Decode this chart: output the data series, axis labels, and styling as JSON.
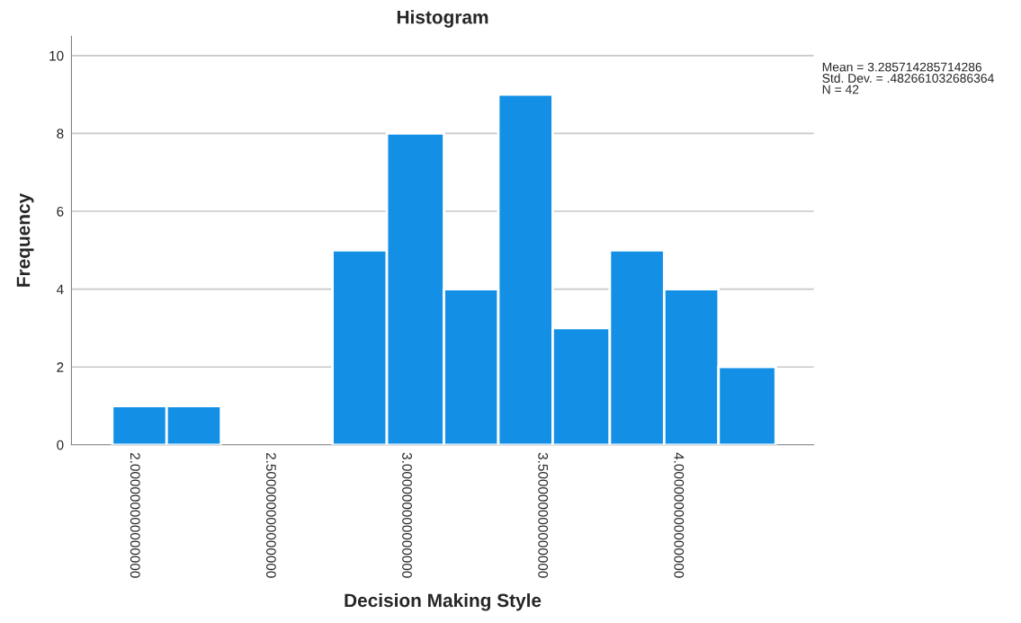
{
  "chart_data": {
    "type": "histogram",
    "title": "Histogram",
    "xlabel": "Decision Making Style",
    "ylabel": "Frequency",
    "bins": [
      1.92,
      2.12,
      2.32,
      2.73,
      2.93,
      3.14,
      3.34,
      3.54,
      3.75,
      3.95,
      4.15,
      4.36
    ],
    "values": [
      1,
      1,
      0,
      5,
      8,
      4,
      9,
      3,
      5,
      4,
      2
    ],
    "color": "#1390e6",
    "xlim": [
      1.77,
      4.5
    ],
    "xticks": [
      {
        "value": 2,
        "label": "2.000000000000000"
      },
      {
        "value": 2.5,
        "label": "2.500000000000000"
      },
      {
        "value": 3,
        "label": "3.000000000000000"
      },
      {
        "value": 3.5,
        "label": "3.500000000000000"
      },
      {
        "value": 4,
        "label": "4.000000000000000"
      }
    ],
    "ylim": [
      0,
      10.5
    ],
    "yticks": [
      0,
      2,
      4,
      6,
      8,
      10
    ],
    "grid": "y",
    "legend": false,
    "annotations": [
      "Mean = 3.285714285714286\nStd. Dev. = .482661032686364\nN = 42"
    ]
  }
}
